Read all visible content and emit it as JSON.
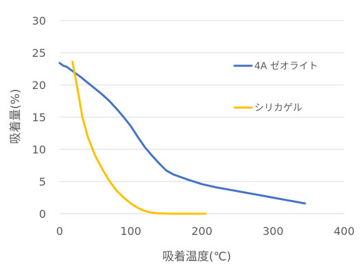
{
  "chart_data": {
    "type": "line",
    "title": "",
    "xlabel": "吸着温度(℃)",
    "ylabel": "吸着量(%)",
    "xlim": [
      0,
      400
    ],
    "ylim": [
      0,
      30
    ],
    "x_ticks": [
      0,
      100,
      200,
      300,
      400
    ],
    "y_ticks": [
      0,
      5,
      10,
      15,
      20,
      25,
      30
    ],
    "grid": "horizontal",
    "legend_position": "right",
    "series": [
      {
        "name": "4A ゼオライト",
        "color": "#4472C4",
        "points": [
          [
            0,
            23.4
          ],
          [
            5,
            23.0
          ],
          [
            10,
            22.8
          ],
          [
            20,
            22.0
          ],
          [
            30,
            21.2
          ],
          [
            40,
            20.3
          ],
          [
            50,
            19.4
          ],
          [
            60,
            18.5
          ],
          [
            70,
            17.5
          ],
          [
            80,
            16.3
          ],
          [
            90,
            15.0
          ],
          [
            100,
            13.6
          ],
          [
            110,
            11.9
          ],
          [
            120,
            10.3
          ],
          [
            130,
            9.0
          ],
          [
            140,
            7.8
          ],
          [
            150,
            6.7
          ],
          [
            160,
            6.1
          ],
          [
            180,
            5.3
          ],
          [
            200,
            4.6
          ],
          [
            220,
            4.1
          ],
          [
            240,
            3.7
          ],
          [
            260,
            3.3
          ],
          [
            280,
            2.9
          ],
          [
            300,
            2.5
          ],
          [
            320,
            2.1
          ],
          [
            335,
            1.8
          ],
          [
            345,
            1.6
          ]
        ]
      },
      {
        "name": "シリカゲル",
        "color": "#FFC000",
        "points": [
          [
            18,
            23.6
          ],
          [
            25,
            19.5
          ],
          [
            32,
            15.0
          ],
          [
            40,
            11.8
          ],
          [
            50,
            9.0
          ],
          [
            60,
            6.9
          ],
          [
            70,
            5.1
          ],
          [
            80,
            3.6
          ],
          [
            90,
            2.5
          ],
          [
            100,
            1.6
          ],
          [
            110,
            0.9
          ],
          [
            120,
            0.4
          ],
          [
            130,
            0.15
          ],
          [
            140,
            0.05
          ],
          [
            160,
            0.0
          ],
          [
            180,
            0.0
          ],
          [
            200,
            0.0
          ],
          [
            205,
            0.0
          ]
        ]
      }
    ]
  }
}
